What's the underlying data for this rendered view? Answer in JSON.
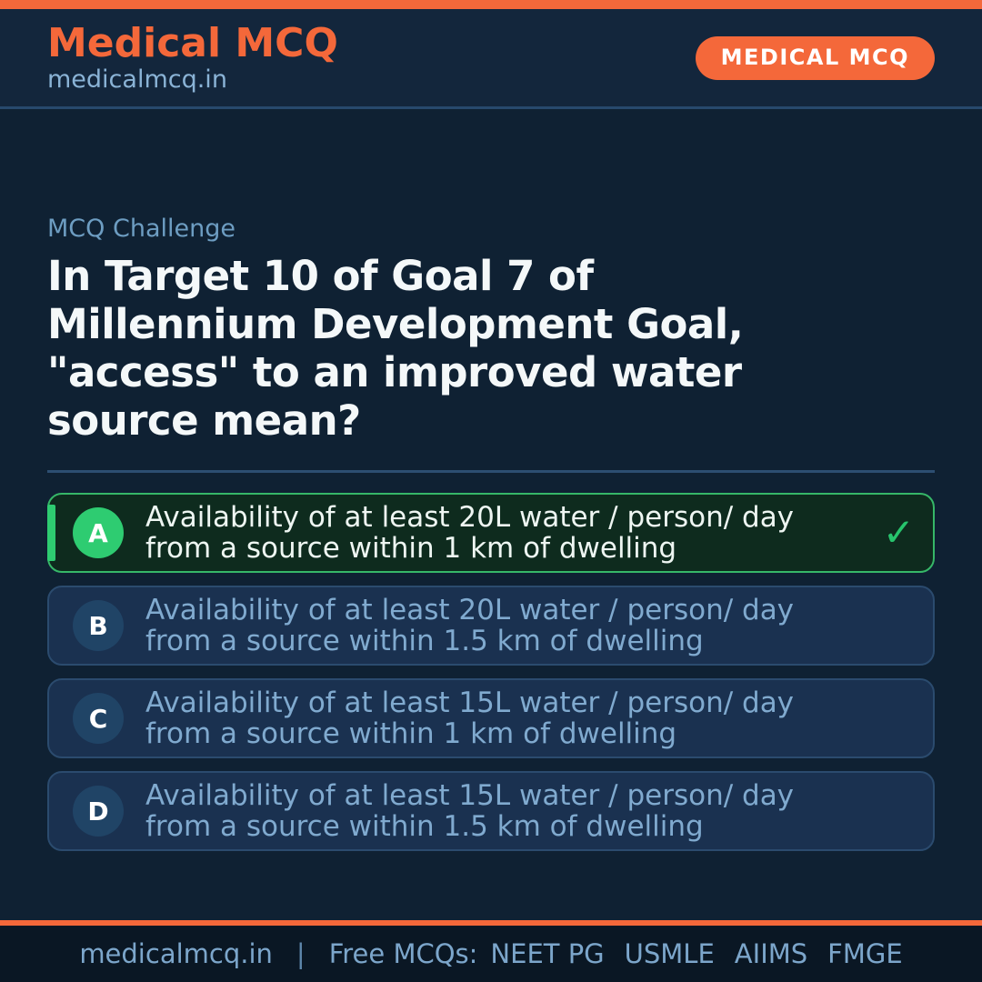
{
  "colors": {
    "accent_orange": "#f4683a",
    "correct_green": "#2ecc71",
    "page_bg": "#0f2133",
    "option_text_blue": "#80aacf"
  },
  "header": {
    "title": "Medical MCQ",
    "subtitle": "medicalmcq.in",
    "badge": "MEDICAL MCQ"
  },
  "question": {
    "eyebrow": "MCQ Challenge",
    "lines": [
      "In Target 10 of Goal 7 of",
      "Millennium Development Goal,",
      "\"access\" to an improved water",
      "source mean?"
    ]
  },
  "options": [
    {
      "letter": "A",
      "lines": [
        "Availability of at least 20L water / person/ day",
        "from a source within 1 km of dwelling"
      ],
      "correct": true,
      "check_icon": "✓"
    },
    {
      "letter": "B",
      "lines": [
        "Availability of at least 20L water / person/ day",
        "from a source within 1.5 km of dwelling"
      ],
      "correct": false
    },
    {
      "letter": "C",
      "lines": [
        "Availability of at least 15L water / person/ day",
        "from a source within 1 km of dwelling"
      ],
      "correct": false
    },
    {
      "letter": "D",
      "lines": [
        "Availability of at least 15L water / person/ day",
        "from a source within 1.5 km of dwelling"
      ],
      "correct": false
    }
  ],
  "footer": {
    "site": "medicalmcq.in",
    "separator": "|",
    "free_label": "Free MCQs:",
    "exams": [
      "NEET PG",
      "USMLE",
      "AIIMS",
      "FMGE"
    ]
  }
}
